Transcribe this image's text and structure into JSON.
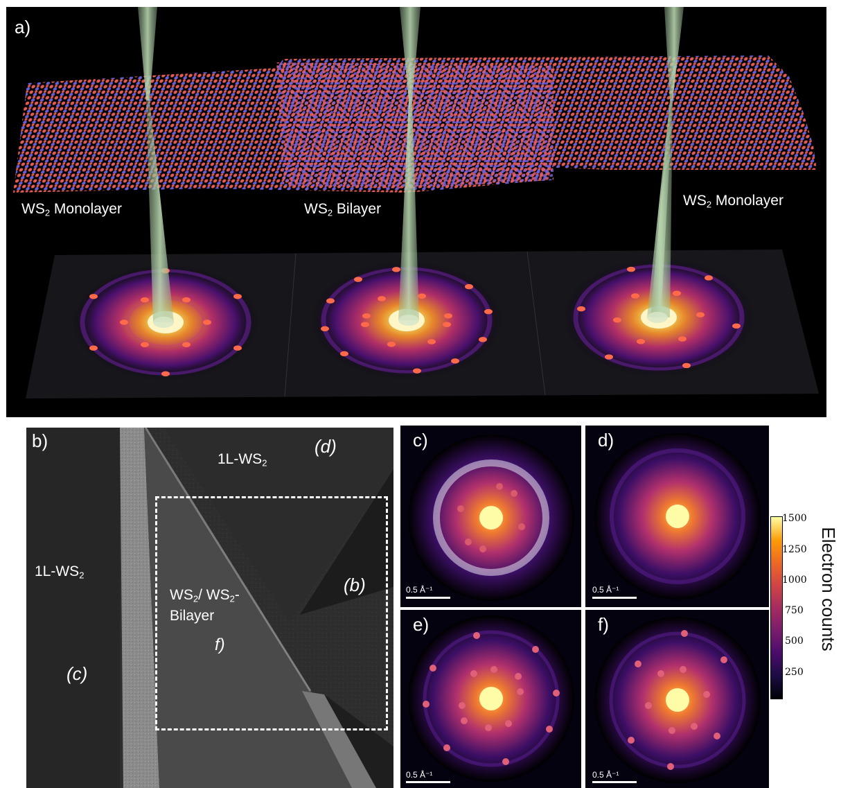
{
  "panel_a": {
    "label": "a)",
    "regions": [
      {
        "prefix": "WS",
        "sub": "2",
        "suffix": " Monolayer"
      },
      {
        "prefix": "WS",
        "sub": "2",
        "suffix": " Bilayer"
      },
      {
        "prefix": "WS",
        "sub": "2",
        "suffix": " Monolayer"
      }
    ]
  },
  "panel_b": {
    "label": "b)",
    "region_top": {
      "prefix": "1L-WS",
      "sub": "2"
    },
    "region_left": {
      "prefix": "1L-WS",
      "sub": "2"
    },
    "bilayer": {
      "p1": "WS",
      "s1": "2",
      "mid": "/ WS",
      "s2": "2",
      "end": "-",
      "line2": "Bilayer"
    },
    "markers": [
      "(d)",
      "(b)",
      "(c)",
      "f)"
    ]
  },
  "patterns": [
    {
      "label": "c)",
      "scale": "0.5 Å⁻¹"
    },
    {
      "label": "d)",
      "scale": "0.5 Å⁻¹"
    },
    {
      "label": "e)",
      "scale": "0.5 Å⁻¹"
    },
    {
      "label": "f)",
      "scale": "0.5 Å⁻¹"
    }
  ],
  "colorbar": {
    "title": "Electron counts",
    "ticks": [
      "1500",
      "1250",
      "1000",
      "750",
      "500",
      "250"
    ]
  }
}
